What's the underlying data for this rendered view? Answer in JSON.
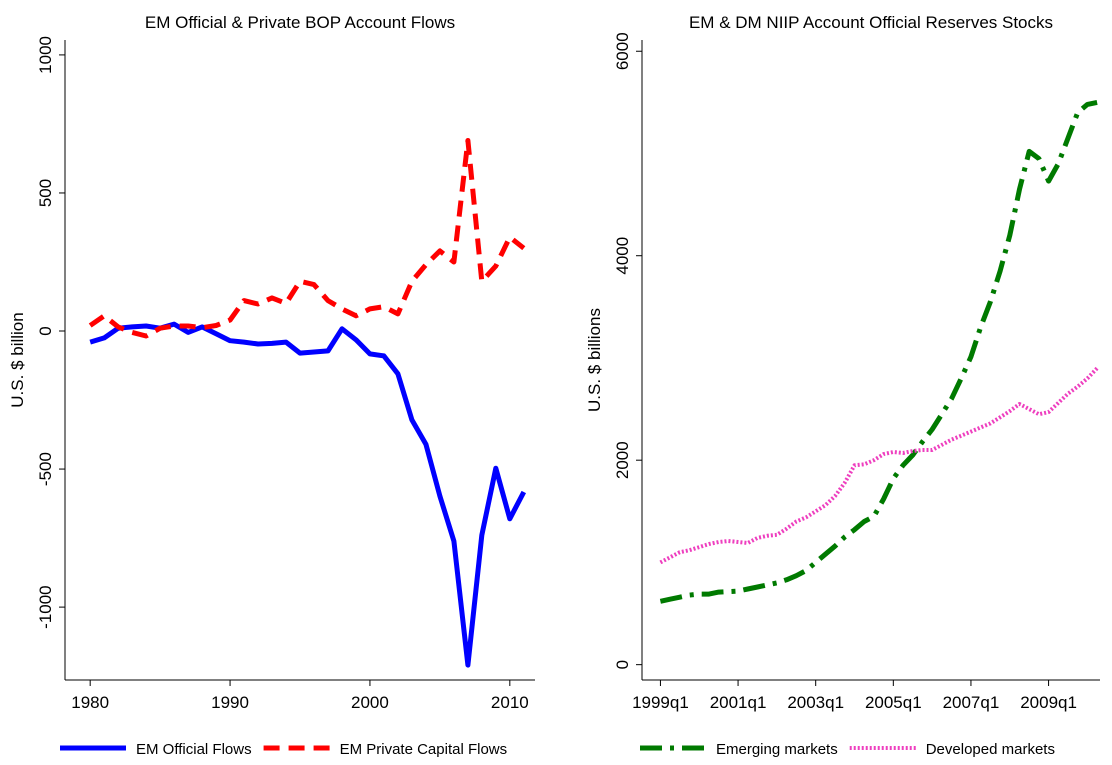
{
  "chart_data": [
    {
      "type": "line",
      "title": "EM Official & Private BOP Account Flows",
      "y_label": "U.S. $ billion",
      "x": [
        1980,
        1981,
        1982,
        1983,
        1984,
        1985,
        1986,
        1987,
        1988,
        1989,
        1990,
        1991,
        1992,
        1993,
        1994,
        1995,
        1996,
        1997,
        1998,
        1999,
        2000,
        2001,
        2002,
        2003,
        2004,
        2005,
        2006,
        2007,
        2008,
        2009,
        2010,
        2011
      ],
      "xlim": [
        1978.2,
        2011.8
      ],
      "xticks": [
        1980,
        1990,
        2000,
        2010
      ],
      "ylim": [
        -1264,
        1054
      ],
      "yticks": [
        -1000,
        -500,
        0,
        500,
        1000
      ],
      "series": [
        {
          "name": "EM Official Flows",
          "color": "#0000ff",
          "dash": "solid",
          "values": [
            -40,
            -25,
            10,
            15,
            18,
            10,
            25,
            -5,
            15,
            -10,
            -35,
            -40,
            -47,
            -45,
            -40,
            -80,
            -76,
            -72,
            8,
            -32,
            -83,
            -90,
            -155,
            -322,
            -410,
            -598,
            -761,
            -1210,
            -740,
            -497,
            -680,
            -583
          ]
        },
        {
          "name": "EM Private Capital Flows",
          "color": "#ff0000",
          "dash": "dash",
          "values": [
            20,
            55,
            15,
            -5,
            -18,
            10,
            18,
            18,
            12,
            20,
            40,
            110,
            98,
            120,
            100,
            180,
            168,
            110,
            80,
            55,
            80,
            88,
            62,
            180,
            240,
            290,
            250,
            690,
            180,
            235,
            340,
            300
          ]
        }
      ]
    },
    {
      "type": "line",
      "title": "EM & DM NIIP Account Official Reserves Stocks",
      "y_label": "U.S. $ billions",
      "categories": [
        "1999q1",
        "1999q2",
        "1999q3",
        "1999q4",
        "2000q1",
        "2000q2",
        "2000q3",
        "2000q4",
        "2001q1",
        "2001q2",
        "2001q3",
        "2001q4",
        "2002q1",
        "2002q2",
        "2002q3",
        "2002q4",
        "2003q1",
        "2003q2",
        "2003q3",
        "2003q4",
        "2004q1",
        "2004q2",
        "2004q3",
        "2004q4",
        "2005q1",
        "2005q2",
        "2005q3",
        "2005q4",
        "2006q1",
        "2006q2",
        "2006q3",
        "2006q4",
        "2007q1",
        "2007q2",
        "2007q3",
        "2007q4",
        "2008q1",
        "2008q2",
        "2008q3",
        "2008q4",
        "2009q1",
        "2009q2",
        "2009q3",
        "2009q4",
        "2010q1",
        "2010q2"
      ],
      "xticks": [
        "1999q1",
        "2001q1",
        "2003q1",
        "2005q1",
        "2007q1",
        "2009q1"
      ],
      "ylim": [
        -150,
        6110
      ],
      "yticks": [
        0,
        2000,
        4000,
        6000
      ],
      "series": [
        {
          "name": "Emerging markets",
          "color": "#007a00",
          "dash": "dashdot",
          "values": [
            620,
            640,
            660,
            680,
            690,
            690,
            710,
            715,
            720,
            740,
            760,
            780,
            800,
            830,
            870,
            920,
            1000,
            1080,
            1160,
            1250,
            1320,
            1400,
            1450,
            1620,
            1820,
            1950,
            2050,
            2180,
            2300,
            2450,
            2600,
            2800,
            3010,
            3300,
            3550,
            3850,
            4200,
            4650,
            5020,
            4950,
            4730,
            4900,
            5150,
            5400,
            5480,
            5500
          ]
        },
        {
          "name": "Developed markets",
          "color": "#ee3fbf",
          "dash": "dot",
          "values": [
            1000,
            1050,
            1100,
            1120,
            1150,
            1180,
            1200,
            1210,
            1200,
            1190,
            1240,
            1260,
            1270,
            1330,
            1400,
            1440,
            1500,
            1560,
            1650,
            1780,
            1950,
            1960,
            2000,
            2060,
            2080,
            2070,
            2090,
            2100,
            2100,
            2150,
            2200,
            2240,
            2280,
            2320,
            2360,
            2420,
            2480,
            2550,
            2500,
            2450,
            2470,
            2560,
            2650,
            2720,
            2800,
            2900
          ]
        }
      ]
    }
  ]
}
